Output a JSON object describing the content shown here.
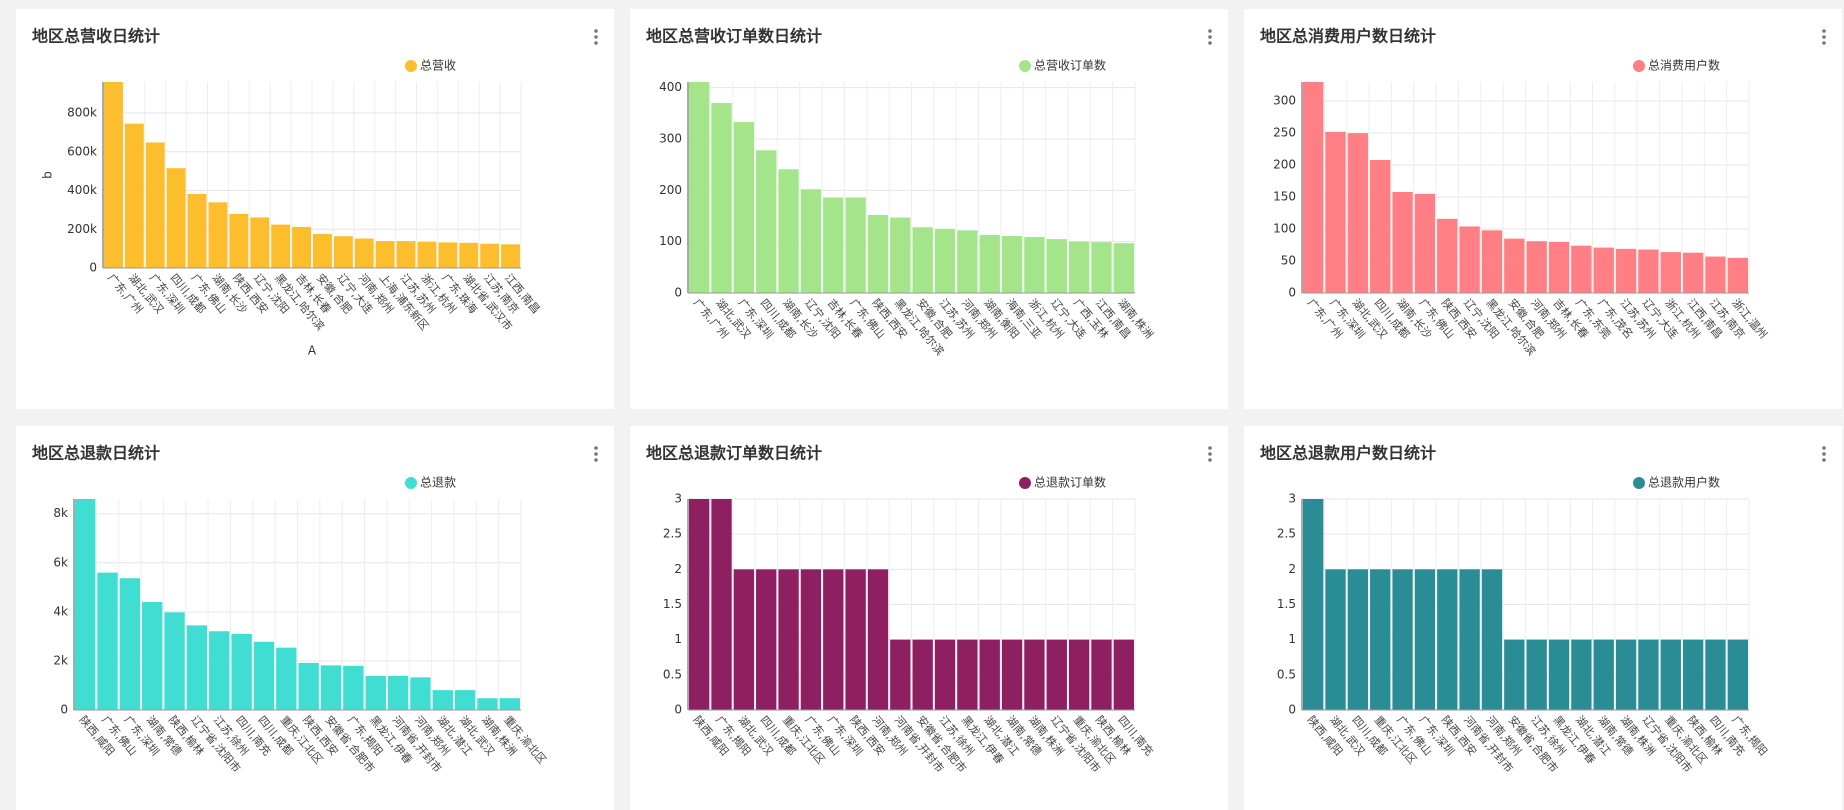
{
  "chart_data": [
    {
      "type": "bar",
      "title": "地区总营收日统计",
      "ylabel": "b",
      "xlabel": "A",
      "categories": [
        "广东,广州",
        "湖北,武汉",
        "广东,深圳",
        "四川,成都",
        "广东,佛山",
        "湖南,长沙",
        "陕西,西安",
        "辽宁,沈阳",
        "黑龙江,哈尔滨",
        "吉林,长春",
        "安徽,合肥",
        "辽宁,大连",
        "河南,郑州",
        "上海,浦东新区",
        "江苏,苏州",
        "浙江,杭州",
        "广东,珠海",
        "湖北省,武汉市",
        "江苏,南京",
        "江西,南昌"
      ],
      "series": [
        {
          "name": "总营收",
          "color": "#fdbe2d",
          "values": [
            960000,
            745000,
            648000,
            515000,
            382000,
            339000,
            279000,
            261000,
            224000,
            212000,
            176000,
            164000,
            152000,
            139000,
            139000,
            136000,
            132000,
            130000,
            125000,
            122000
          ]
        }
      ],
      "ylim": [
        0,
        960000
      ],
      "yticks": [
        0,
        {
          "value": 200000,
          "label": "200k"
        },
        {
          "value": 400000,
          "label": "400k"
        },
        {
          "value": 600000,
          "label": "600k"
        },
        {
          "value": 800000,
          "label": "800k"
        }
      ],
      "grid": true,
      "legend": "top-right"
    },
    {
      "type": "bar",
      "title": "地区总营收订单数日统计",
      "categories": [
        "广东,广州",
        "湖北,武汉",
        "广东,深圳",
        "四川,成都",
        "湖南,长沙",
        "辽宁,沈阳",
        "吉林,长春",
        "广东,佛山",
        "陕西,西安",
        "黑龙江,哈尔滨",
        "安徽,合肥",
        "江苏,苏州",
        "河南,郑州",
        "湖南,衡阳",
        "海南,三亚",
        "浙江,杭州",
        "辽宁,大连",
        "广西,玉林",
        "江西,南昌",
        "湖南,株洲"
      ],
      "series": [
        {
          "name": "总营收订单数",
          "color": "#a4e58b",
          "values": [
            411,
            370,
            333,
            278,
            241,
            202,
            186,
            186,
            152,
            147,
            128,
            125,
            122,
            113,
            111,
            109,
            105,
            100,
            99,
            97
          ]
        }
      ],
      "ylim": [
        0,
        411
      ],
      "yticks": [
        0,
        100,
        200,
        300,
        400
      ],
      "grid": true,
      "legend": "top-right"
    },
    {
      "type": "bar",
      "title": "地区总消费用户数日统计",
      "categories": [
        "广东,广州",
        "广东,深圳",
        "湖北,武汉",
        "四川,成都",
        "湖南,长沙",
        "广东,佛山",
        "陕西,西安",
        "辽宁,沈阳",
        "黑龙江,哈尔滨",
        "安徽,合肥",
        "河南,郑州",
        "吉林,长春",
        "广东,东莞",
        "广东,茂名",
        "江苏,苏州",
        "辽宁,大连",
        "浙江,杭州",
        "江西,南昌",
        "江苏,南京",
        "浙江,温州"
      ],
      "series": [
        {
          "name": "总消费用户数",
          "color": "#ff7f84",
          "values": [
            330,
            252,
            250,
            208,
            158,
            155,
            116,
            104,
            98,
            85,
            81,
            80,
            74,
            71,
            69,
            68,
            64,
            63,
            57,
            55
          ]
        }
      ],
      "ylim": [
        0,
        330
      ],
      "yticks": [
        0,
        50,
        100,
        150,
        200,
        250,
        300
      ],
      "grid": true,
      "legend": "top-right"
    },
    {
      "type": "bar",
      "title": "地区总退款日统计",
      "categories": [
        "陕西,咸阳",
        "广东,佛山",
        "广东,深圳",
        "湖南,常德",
        "陕西,榆林",
        "辽宁省,沈阳市",
        "江苏,徐州",
        "四川,南充",
        "四川,成都",
        "重庆,江北区",
        "陕西,西安",
        "安徽省,合肥市",
        "广东,揭阳",
        "黑龙江,伊春",
        "河南省,开封市",
        "河南,郑州",
        "湖北,潜江",
        "湖北,武汉",
        "湖南,株洲",
        "重庆,渝北区"
      ],
      "series": [
        {
          "name": "总退款",
          "color": "#40ddd2",
          "values": [
            8600,
            5600,
            5370,
            4400,
            3980,
            3450,
            3210,
            3100,
            2780,
            2540,
            1920,
            1820,
            1800,
            1390,
            1390,
            1330,
            810,
            810,
            480,
            480
          ]
        }
      ],
      "ylim": [
        0,
        8600
      ],
      "yticks": [
        0,
        {
          "value": 2000,
          "label": "2k"
        },
        {
          "value": 4000,
          "label": "4k"
        },
        {
          "value": 6000,
          "label": "6k"
        },
        {
          "value": 8000,
          "label": "8k"
        }
      ],
      "grid": true,
      "legend": "top-right"
    },
    {
      "type": "bar",
      "title": "地区总退款订单数日统计",
      "categories": [
        "陕西,咸阳",
        "广东,揭阳",
        "湖北,武汉",
        "四川,成都",
        "重庆,江北区",
        "广东,佛山",
        "广东,深圳",
        "陕西,西安",
        "河南,郑州",
        "河南省,开封市",
        "安徽省,合肥市",
        "江苏,徐州",
        "黑龙江,伊春",
        "湖北,潜江",
        "湖南,常德",
        "湖南,株洲",
        "辽宁省,沈阳市",
        "重庆,渝北区",
        "陕西,榆林",
        "四川,南充"
      ],
      "series": [
        {
          "name": "总退款订单数",
          "color": "#8e2062",
          "values": [
            3,
            3,
            2,
            2,
            2,
            2,
            2,
            2,
            2,
            1,
            1,
            1,
            1,
            1,
            1,
            1,
            1,
            1,
            1,
            1
          ]
        }
      ],
      "ylim": [
        0,
        3
      ],
      "yticks": [
        0,
        0.5,
        1,
        1.5,
        2,
        2.5,
        3
      ],
      "grid": true,
      "legend": "top-right"
    },
    {
      "type": "bar",
      "title": "地区总退款用户数日统计",
      "categories": [
        "陕西,咸阳",
        "湖北,武汉",
        "四川,成都",
        "重庆,江北区",
        "广东,佛山",
        "广东,深圳",
        "陕西,西安",
        "河南省,开封市",
        "河南,郑州",
        "安徽省,合肥市",
        "江苏,徐州",
        "黑龙江,伊春",
        "湖北,潜江",
        "湖南,常德",
        "湖南,株洲",
        "辽宁省,沈阳市",
        "重庆,渝北区",
        "陕西,榆林",
        "四川,南充",
        "广东,揭阳"
      ],
      "series": [
        {
          "name": "总退款用户数",
          "color": "#2a8d96",
          "values": [
            3,
            2,
            2,
            2,
            2,
            2,
            2,
            2,
            2,
            1,
            1,
            1,
            1,
            1,
            1,
            1,
            1,
            1,
            1,
            1
          ]
        }
      ],
      "ylim": [
        0,
        3
      ],
      "yticks": [
        0,
        0.5,
        1,
        1.5,
        2,
        2.5,
        3
      ],
      "grid": true,
      "legend": "top-right"
    }
  ]
}
